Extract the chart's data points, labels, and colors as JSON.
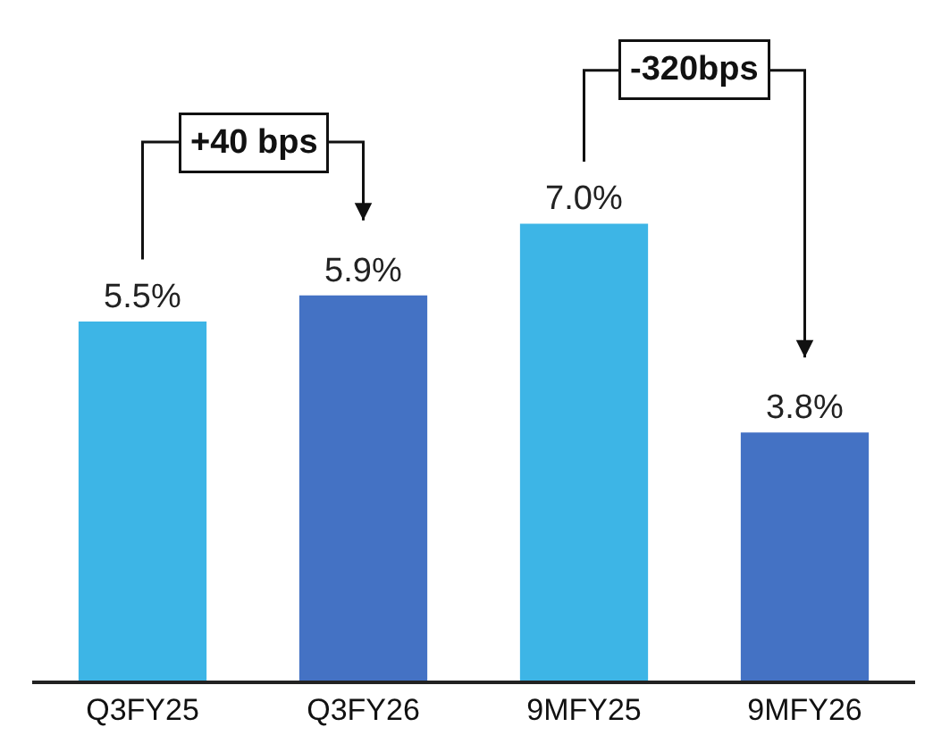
{
  "chart_data": {
    "type": "bar",
    "categories": [
      "Q3FY25",
      "Q3FY26",
      "9MFY25",
      "9MFY26"
    ],
    "values": [
      5.5,
      5.9,
      7.0,
      3.8
    ],
    "value_labels": [
      "5.5%",
      "5.9%",
      "7.0%",
      "3.8%"
    ],
    "colors": [
      "#3db5e6",
      "#4472c4",
      "#3db5e6",
      "#4472c4"
    ],
    "annotations": [
      "+40 bps",
      "-320bps"
    ]
  }
}
